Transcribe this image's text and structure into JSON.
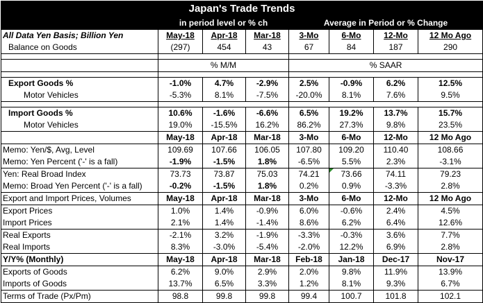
{
  "title": "Japan's Trade Trends",
  "subtitle_left": "in period level or % ch",
  "subtitle_right": "Average in Period or % Change",
  "header1": {
    "label": "All Data Yen Basis; Billion Yen",
    "cols": [
      "May-18",
      "Apr-18",
      "Mar-18",
      "3-Mo",
      "6-Mo",
      "12-Mo",
      "12 Mo Ago"
    ]
  },
  "balance": {
    "label": "Balance on Goods",
    "vals": [
      "(297)",
      "454",
      "43",
      "67",
      "84",
      "187",
      "290"
    ]
  },
  "unit_mm": "% M/M",
  "unit_saar": "% SAAR",
  "export_goods": {
    "label": "Export Goods %",
    "vals": [
      "-1.0%",
      "4.7%",
      "-2.9%",
      "2.5%",
      "-0.9%",
      "6.2%",
      "12.5%"
    ]
  },
  "export_motor": {
    "label": "Motor Vehicles",
    "vals": [
      "-5.3%",
      "8.1%",
      "-7.5%",
      "-20.0%",
      "8.1%",
      "7.6%",
      "9.5%"
    ]
  },
  "import_goods": {
    "label": "Import Goods %",
    "vals": [
      "10.6%",
      "-1.6%",
      "-6.6%",
      "6.5%",
      "19.2%",
      "13.7%",
      "15.7%"
    ]
  },
  "import_motor": {
    "label": "Motor Vehicles",
    "vals": [
      "19.0%",
      "-15.5%",
      "16.2%",
      "86.2%",
      "27.3%",
      "9.8%",
      "23.5%"
    ]
  },
  "header2": {
    "cols": [
      "May-18",
      "Apr-18",
      "Mar-18",
      "3-Mo",
      "6-Mo",
      "12-Mo",
      "12 Mo Ago"
    ]
  },
  "memo_yen_level": {
    "label": "Memo: Yen/$, Avg, Level",
    "vals": [
      "109.69",
      "107.66",
      "106.05",
      "107.80",
      "109.20",
      "110.40",
      "108.66"
    ]
  },
  "memo_yen_pct": {
    "label": "Memo: Yen Percent ('-' is a fall)",
    "vals": [
      "-1.9%",
      "-1.5%",
      "1.8%",
      "-6.5%",
      "5.5%",
      "2.3%",
      "-3.1%"
    ]
  },
  "real_broad": {
    "label": "Yen: Real Broad Index",
    "vals": [
      "73.73",
      "73.87",
      "75.03",
      "74.21",
      "73.66",
      "74.11",
      "79.23"
    ]
  },
  "memo_broad_pct": {
    "label": "Memo: Broad Yen Percent ('-' is a fall)",
    "vals": [
      "-0.2%",
      "-1.5%",
      "1.8%",
      "0.2%",
      "0.9%",
      "-3.3%",
      "2.8%"
    ]
  },
  "header3": {
    "label": "Export and Import Prices, Volumes",
    "cols": [
      "May-18",
      "Apr-18",
      "Mar-18",
      "3-Mo",
      "6-Mo",
      "12-Mo",
      "12 Mo Ago"
    ]
  },
  "export_prices": {
    "label": "Export Prices",
    "vals": [
      "1.0%",
      "1.4%",
      "-0.9%",
      "6.0%",
      "-0.6%",
      "2.4%",
      "4.5%"
    ]
  },
  "import_prices": {
    "label": "Import Prices",
    "vals": [
      "2.1%",
      "1.4%",
      "-1.4%",
      "8.6%",
      "6.2%",
      "6.4%",
      "12.6%"
    ]
  },
  "real_exports": {
    "label": "Real Exports",
    "vals": [
      "-2.1%",
      "3.2%",
      "-1.9%",
      "-3.3%",
      "-0.3%",
      "3.6%",
      "7.7%"
    ]
  },
  "real_imports": {
    "label": "Real Imports",
    "vals": [
      "8.3%",
      "-3.0%",
      "-5.4%",
      "-2.0%",
      "12.2%",
      "6.9%",
      "2.8%"
    ]
  },
  "header4": {
    "label": "Y/Y% (Monthly)",
    "cols": [
      "May-18",
      "Apr-18",
      "Mar-18",
      "Feb-18",
      "Jan-18",
      "Dec-17",
      "Nov-17"
    ]
  },
  "exports_goods": {
    "label": "Exports of Goods",
    "vals": [
      "6.2%",
      "9.0%",
      "2.9%",
      "2.0%",
      "9.8%",
      "11.9%",
      "13.9%"
    ]
  },
  "imports_goods": {
    "label": "Imports of Goods",
    "vals": [
      "13.7%",
      "6.5%",
      "3.3%",
      "1.2%",
      "8.1%",
      "9.3%",
      "6.7%"
    ]
  },
  "terms_trade": {
    "label": "Terms of Trade (Px/Pm)",
    "vals": [
      "98.8",
      "99.8",
      "99.8",
      "99.4",
      "100.7",
      "101.8",
      "102.1"
    ]
  },
  "colors": {
    "header_bg": "#000000",
    "header_fg": "#ffffff",
    "cell_marker": "#2e8b2e"
  }
}
